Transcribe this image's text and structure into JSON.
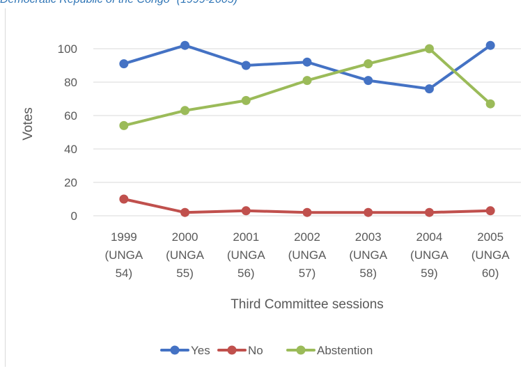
{
  "header": {
    "title": "Democratic Republic of the Congo\" (1999-2005)"
  },
  "chart_data": {
    "type": "line",
    "title": "Democratic Republic of the Congo\" (1999-2005)",
    "xlabel": "Third Committee sessions",
    "ylabel": "Votes",
    "categories": [
      [
        "1999",
        "(UNGA",
        "54)"
      ],
      [
        "2000",
        "(UNGA",
        "55)"
      ],
      [
        "2001",
        "(UNGA",
        "56)"
      ],
      [
        "2002",
        "(UNGA",
        "57)"
      ],
      [
        "2003",
        "(UNGA",
        "58)"
      ],
      [
        "2004",
        "(UNGA",
        "59)"
      ],
      [
        "2005",
        "(UNGA",
        "60)"
      ]
    ],
    "ylim": [
      0,
      110
    ],
    "yticks": [
      0,
      20,
      40,
      60,
      80,
      100
    ],
    "grid": true,
    "legend_position": "bottom",
    "series": [
      {
        "name": "Yes",
        "color": "#4472c4",
        "values": [
          91,
          102,
          90,
          92,
          81,
          76,
          102
        ]
      },
      {
        "name": "No",
        "color": "#c0504d",
        "values": [
          10,
          2,
          3,
          2,
          2,
          2,
          3
        ]
      },
      {
        "name": "Abstention",
        "color": "#9bbb59",
        "values": [
          54,
          63,
          69,
          81,
          91,
          100,
          67
        ]
      }
    ]
  }
}
